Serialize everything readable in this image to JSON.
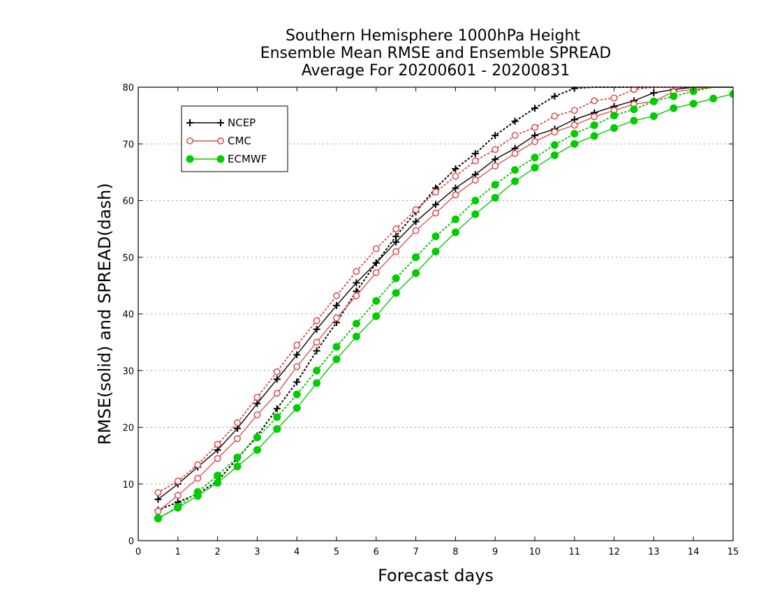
{
  "chart_data": {
    "type": "line",
    "title": [
      "Southern Hemisphere 1000hPa Height",
      "Ensemble Mean RMSE and Ensemble SPREAD",
      "Average For 20200601 - 20200831"
    ],
    "xlabel": "Forecast days",
    "ylabel": "RMSE(solid) and SPREAD(dash)",
    "xlim": [
      0,
      15
    ],
    "ylim": [
      0,
      80
    ],
    "xticks": [
      "0",
      "1",
      "2",
      "3",
      "4",
      "5",
      "6",
      "7",
      "8",
      "9",
      "10",
      "11",
      "12",
      "13",
      "14",
      "15"
    ],
    "yticks": [
      "0",
      "10",
      "20",
      "30",
      "40",
      "50",
      "60",
      "70",
      "80"
    ],
    "grid": "horizontal dotted",
    "legend": {
      "placement": "top-left",
      "entries": [
        "NCEP",
        "CMC",
        "ECMWF"
      ]
    },
    "x": [
      0.5,
      1,
      1.5,
      2,
      2.5,
      3,
      3.5,
      4,
      4.5,
      5,
      5.5,
      6,
      6.5,
      7,
      7.5,
      8,
      8.5,
      9,
      9.5,
      10,
      10.5,
      11,
      11.5,
      12,
      12.5,
      13,
      13.5,
      14,
      14.5,
      15
    ],
    "series": [
      {
        "name": "NCEP",
        "metric": "RMSE",
        "style": "solid",
        "marker": "plus",
        "color": "#000000",
        "values": [
          7.3,
          10,
          13,
          16,
          19.8,
          24.2,
          28.5,
          32.8,
          37.3,
          41.5,
          45.5,
          49,
          52.7,
          56.3,
          59.3,
          62.2,
          64.6,
          67.3,
          69.2,
          71.5,
          72.6,
          74.3,
          75.5,
          76.6,
          77.6,
          79,
          79.6,
          80,
          80,
          80
        ]
      },
      {
        "name": "NCEP",
        "metric": "SPREAD",
        "style": "dotted",
        "marker": "plus",
        "color": "#000000",
        "values": [
          5.4,
          6.8,
          8.3,
          10.5,
          14.5,
          18.5,
          23.3,
          28,
          33.5,
          38.5,
          44,
          49,
          53.7,
          58,
          62.2,
          65.6,
          68.3,
          71.5,
          74,
          76.3,
          78.4,
          79.8,
          80,
          80,
          80,
          80,
          80,
          80,
          80,
          80
        ]
      },
      {
        "name": "CMC",
        "metric": "RMSE",
        "style": "solid",
        "marker": "open-circle",
        "color": "#e05050",
        "values": [
          5.2,
          8,
          11,
          14.5,
          18,
          22.2,
          26,
          30.7,
          35,
          39.3,
          43.2,
          47.3,
          51,
          54.7,
          57.8,
          61,
          63.6,
          66.1,
          68.3,
          70.4,
          72.1,
          73.3,
          74.8,
          75.9,
          77,
          77.5,
          79.2,
          79.6,
          80,
          80
        ]
      },
      {
        "name": "CMC",
        "metric": "SPREAD",
        "style": "dotted",
        "marker": "open-circle",
        "color": "#e05050",
        "values": [
          8.5,
          10.5,
          13.4,
          17,
          20.8,
          25.3,
          29.8,
          34.5,
          38.8,
          43.2,
          47.5,
          51.5,
          55,
          58.4,
          61.5,
          64.3,
          67,
          69,
          71.5,
          72.9,
          74.9,
          75.9,
          77.6,
          78.1,
          79.6,
          80,
          80,
          80,
          80,
          80
        ]
      },
      {
        "name": "ECMWF",
        "metric": "RMSE",
        "style": "solid",
        "marker": "filled-circle",
        "color": "#00cc00",
        "values": [
          4,
          5.8,
          7.9,
          10.2,
          13.1,
          16,
          19.7,
          23.4,
          27.8,
          32,
          36,
          39.6,
          43.7,
          47.2,
          51,
          54.4,
          57.6,
          60.5,
          63.4,
          65.8,
          68,
          70,
          71.4,
          72.8,
          74.1,
          74.9,
          76.3,
          77.1,
          78,
          78.8
        ]
      },
      {
        "name": "ECMWF",
        "metric": "SPREAD",
        "style": "dotted",
        "marker": "filled-circle",
        "color": "#00cc00",
        "values": [
          3.9,
          6,
          8.6,
          11.5,
          14.7,
          18.2,
          21.8,
          25.8,
          30,
          34.2,
          38.3,
          42.3,
          46.3,
          50,
          53.7,
          56.7,
          60,
          62.8,
          65.4,
          67.6,
          69.8,
          71.8,
          73.3,
          75,
          76.1,
          77.5,
          78.4,
          79.3,
          80,
          80
        ]
      }
    ]
  }
}
